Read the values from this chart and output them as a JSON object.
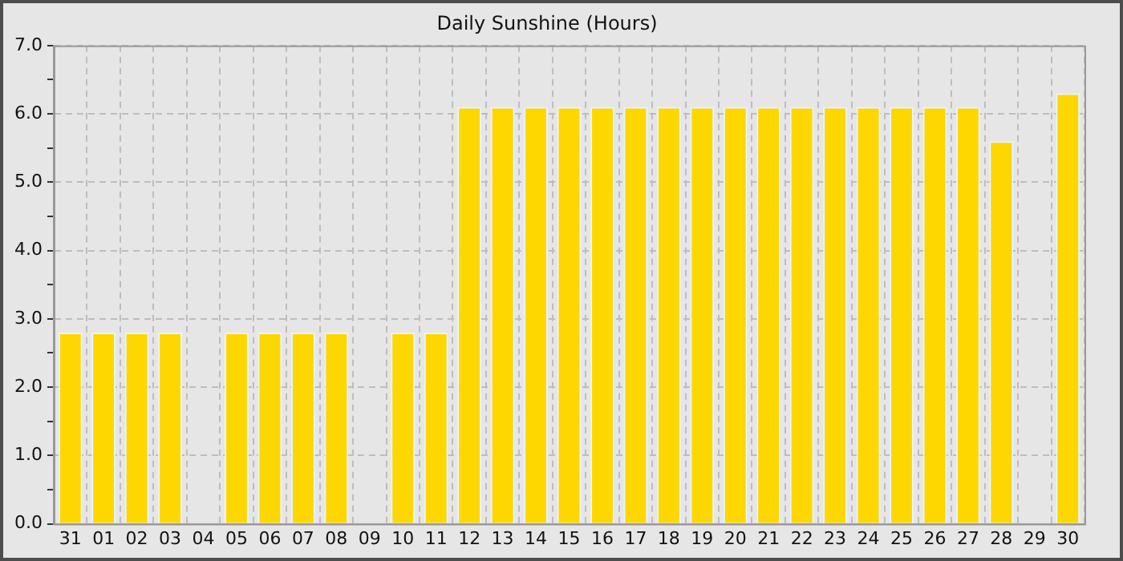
{
  "chart_data": {
    "type": "bar",
    "title": "Daily Sunshine (Hours)",
    "categories": [
      "31",
      "01",
      "02",
      "03",
      "04",
      "05",
      "06",
      "07",
      "08",
      "09",
      "10",
      "11",
      "12",
      "13",
      "14",
      "15",
      "16",
      "17",
      "18",
      "19",
      "20",
      "21",
      "22",
      "23",
      "24",
      "25",
      "26",
      "27",
      "28",
      "29",
      "30"
    ],
    "values": [
      2.8,
      2.8,
      2.8,
      2.8,
      null,
      2.8,
      2.8,
      2.8,
      2.8,
      null,
      2.8,
      2.8,
      6.1,
      6.1,
      6.1,
      6.1,
      6.1,
      6.1,
      6.1,
      6.1,
      6.1,
      6.1,
      6.1,
      6.1,
      6.1,
      6.1,
      6.1,
      6.1,
      5.6,
      null,
      6.3
    ],
    "color": "#ffd700",
    "ylim": [
      0,
      7
    ],
    "yticks": [
      {
        "value": 0,
        "label": "0.0"
      },
      {
        "value": 0.5,
        "label": null
      },
      {
        "value": 1,
        "label": "1.0"
      },
      {
        "value": 1.5,
        "label": null
      },
      {
        "value": 2,
        "label": "2.0"
      },
      {
        "value": 2.5,
        "label": null
      },
      {
        "value": 3,
        "label": "3.0"
      },
      {
        "value": 3.5,
        "label": null
      },
      {
        "value": 4,
        "label": "4.0"
      },
      {
        "value": 4.5,
        "label": null
      },
      {
        "value": 5,
        "label": "5.0"
      },
      {
        "value": 5.5,
        "label": null
      },
      {
        "value": 6,
        "label": "6.0"
      },
      {
        "value": 6.5,
        "label": null
      },
      {
        "value": 7,
        "label": "7.0"
      }
    ],
    "grid": true
  }
}
